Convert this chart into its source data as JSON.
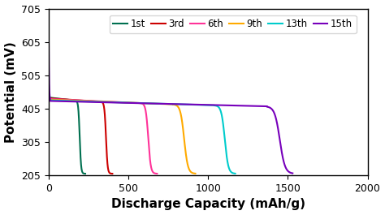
{
  "title": "",
  "xlabel": "Discharge Capacity (mAh/g)",
  "ylabel": "Potential (mV)",
  "xlim": [
    0,
    2000
  ],
  "ylim": [
    205,
    705
  ],
  "yticks": [
    205,
    305,
    405,
    505,
    605,
    705
  ],
  "xticks": [
    0,
    500,
    1000,
    1500,
    2000
  ],
  "background_color": "#ffffff",
  "series": [
    {
      "label": "1st",
      "color": "#007050",
      "initial_v": 460,
      "plateau_v_start": 438,
      "plateau_v_end": 430,
      "drop_start": 160,
      "drop_end": 230,
      "final_v": 210,
      "drop_steepness": 8
    },
    {
      "label": "3rd",
      "color": "#cc0000",
      "initial_v": 450,
      "plateau_v_start": 436,
      "plateau_v_end": 426,
      "drop_start": 320,
      "drop_end": 400,
      "final_v": 210,
      "drop_steepness": 8
    },
    {
      "label": "6th",
      "color": "#ff3399",
      "initial_v": 448,
      "plateau_v_start": 434,
      "plateau_v_end": 422,
      "drop_start": 570,
      "drop_end": 680,
      "final_v": 210,
      "drop_steepness": 7
    },
    {
      "label": "9th",
      "color": "#ffaa00",
      "initial_v": 445,
      "plateau_v_start": 432,
      "plateau_v_end": 418,
      "drop_start": 780,
      "drop_end": 920,
      "final_v": 210,
      "drop_steepness": 6
    },
    {
      "label": "13th",
      "color": "#00cccc",
      "initial_v": 443,
      "plateau_v_start": 430,
      "plateau_v_end": 415,
      "drop_start": 1040,
      "drop_end": 1170,
      "final_v": 210,
      "drop_steepness": 6
    },
    {
      "label": "15th",
      "color": "#7700bb",
      "initial_v": 650,
      "plateau_v_start": 428,
      "plateau_v_end": 412,
      "drop_start": 1370,
      "drop_end": 1530,
      "final_v": 210,
      "drop_steepness": 5
    }
  ],
  "legend_fontsize": 8.5,
  "axis_fontsize": 11,
  "tick_fontsize": 9
}
